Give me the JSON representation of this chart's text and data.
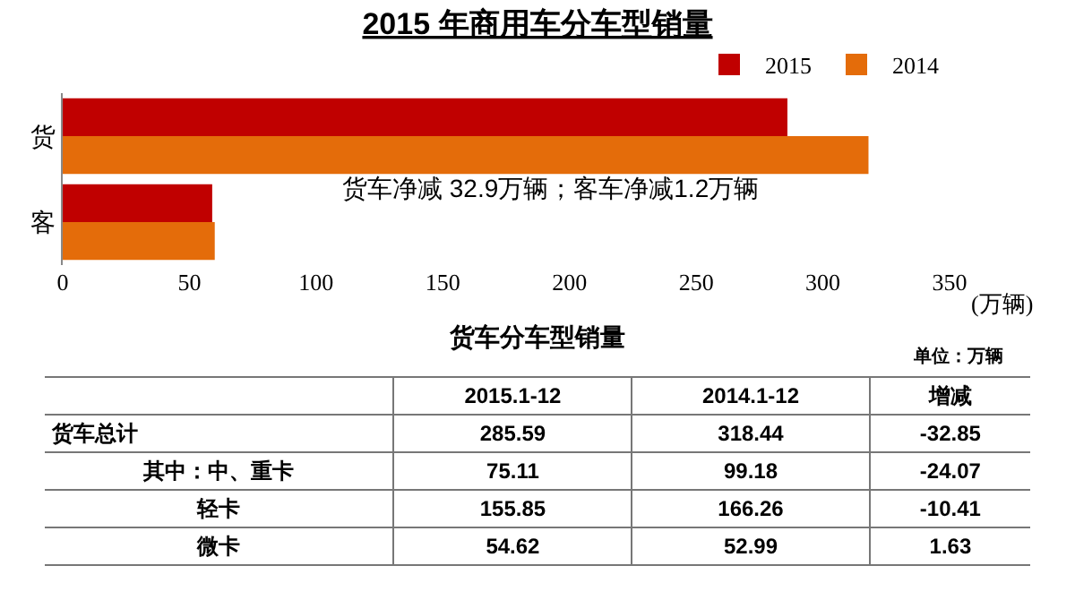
{
  "chart_data": [
    {
      "type": "bar",
      "title": "2015 年商用车分车型销量",
      "orientation": "horizontal",
      "categories": [
        "货",
        "客"
      ],
      "series": [
        {
          "name": "2015",
          "color": "#c00000",
          "values": [
            286,
            59
          ]
        },
        {
          "name": "2014",
          "color": "#e46c0a",
          "values": [
            318,
            60
          ]
        }
      ],
      "xlim": [
        0,
        350
      ],
      "xticks": [
        0,
        50,
        100,
        150,
        200,
        250,
        300,
        350
      ],
      "xlabel": "(万辆)",
      "annotations": [
        "货车净减 32.9万辆；客车净减1.2万辆"
      ],
      "legend": "top right",
      "grid": false
    },
    {
      "type": "other",
      "title": "货车分车型销量",
      "subtitle": "单位：万辆",
      "categories": [
        "2015.1-12",
        "2014.1-12",
        "增减"
      ],
      "y_categories": [
        "货车总计",
        "其中：中、重卡",
        "轻卡",
        "微卡"
      ],
      "cell_labels": [
        [
          "285.59",
          "318.44",
          "-32.85"
        ],
        [
          "75.11",
          "99.18",
          "-24.07"
        ],
        [
          "155.85",
          "166.26",
          "-10.41"
        ],
        [
          "54.62",
          "52.99",
          "1.63"
        ]
      ]
    }
  ]
}
